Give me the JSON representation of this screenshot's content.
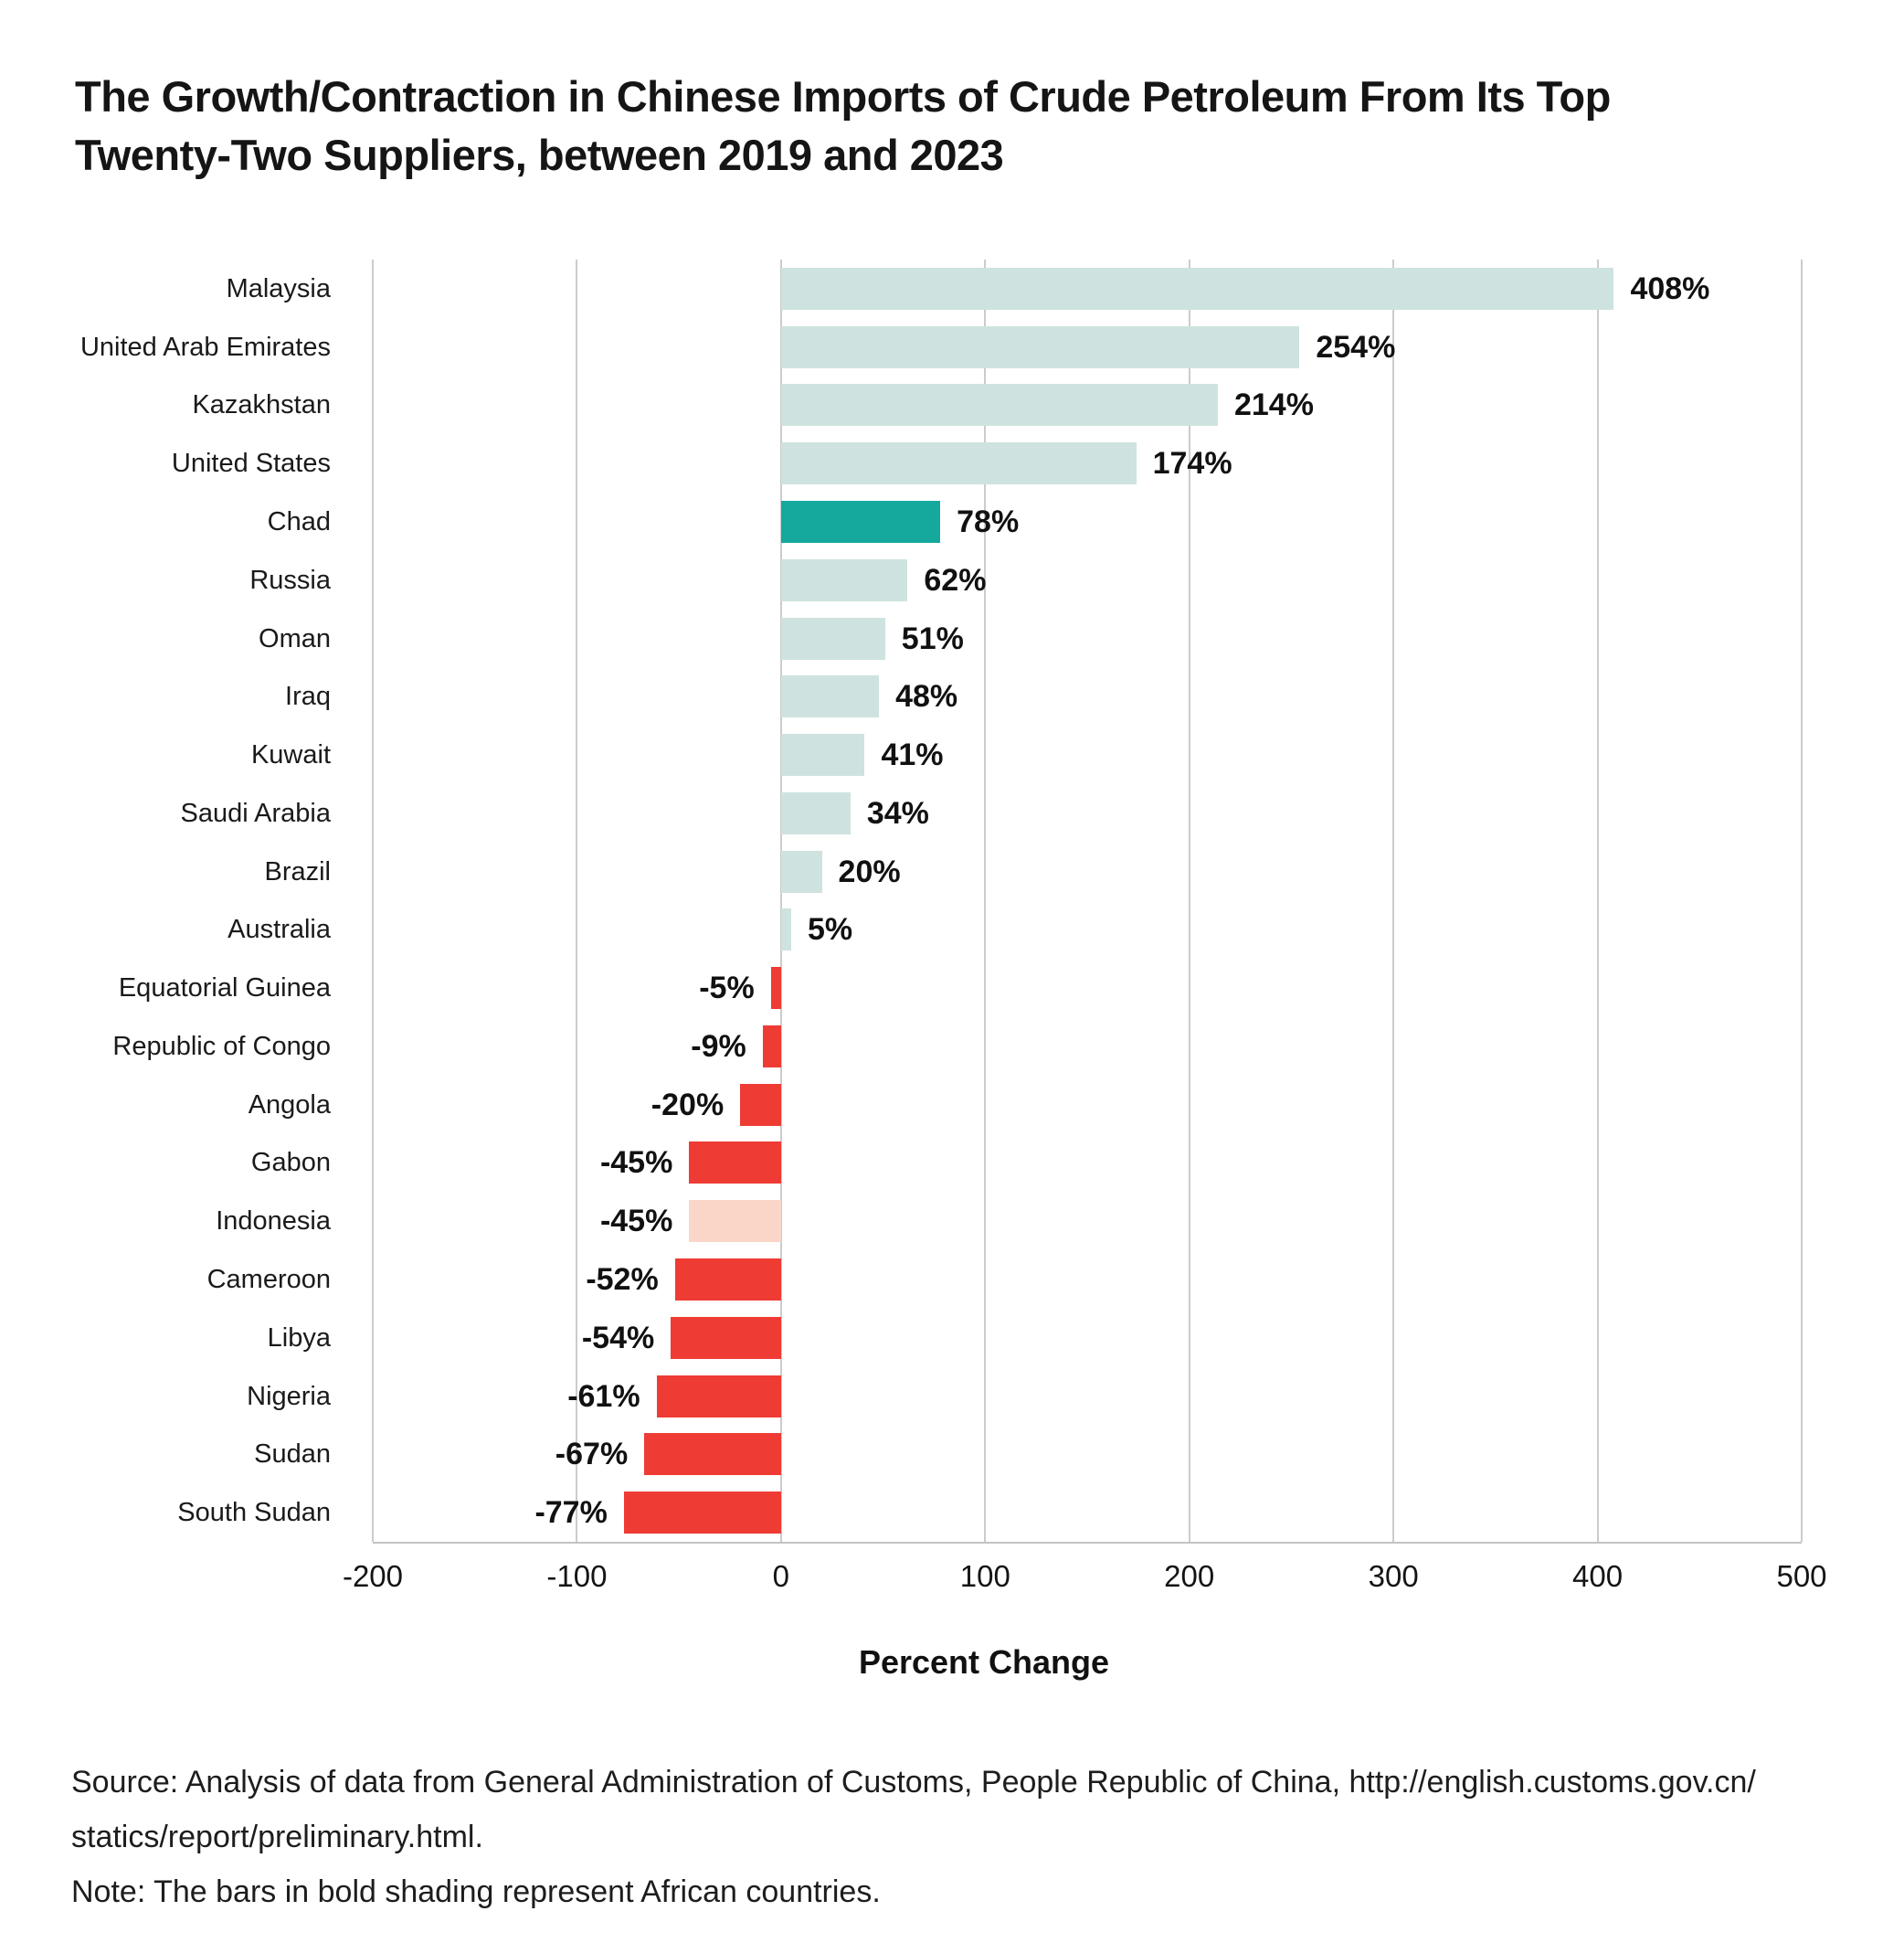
{
  "title": {
    "line1": "The Growth/Contraction in Chinese Imports of Crude Petroleum From Its Top",
    "line2": "Twenty-Two Suppliers, between 2019 and 2023"
  },
  "chart_data": {
    "type": "bar",
    "orientation": "horizontal",
    "title": "The Growth/Contraction in Chinese Imports of Crude Petroleum From Its Top Twenty-Two Suppliers, between 2019 and 2023",
    "xlabel": "Percent Change",
    "xlim": [
      -200,
      500
    ],
    "xticks": [
      -200,
      -100,
      0,
      100,
      200,
      300,
      400,
      500
    ],
    "grid": "vertical",
    "rows": [
      {
        "label": "Malaysia",
        "value": 408,
        "display": "408%",
        "color": "teal_light"
      },
      {
        "label": "United Arab Emirates",
        "value": 254,
        "display": "254%",
        "color": "teal_light"
      },
      {
        "label": "Kazakhstan",
        "value": 214,
        "display": "214%",
        "color": "teal_light"
      },
      {
        "label": "United States",
        "value": 174,
        "display": "174%",
        "color": "teal_light"
      },
      {
        "label": "Chad",
        "value": 78,
        "display": "78%",
        "color": "teal_bold"
      },
      {
        "label": "Russia",
        "value": 62,
        "display": "62%",
        "color": "teal_light"
      },
      {
        "label": "Oman",
        "value": 51,
        "display": "51%",
        "color": "teal_light"
      },
      {
        "label": "Iraq",
        "value": 48,
        "display": "48%",
        "color": "teal_light"
      },
      {
        "label": "Kuwait",
        "value": 41,
        "display": "41%",
        "color": "teal_light"
      },
      {
        "label": "Saudi Arabia",
        "value": 34,
        "display": "34%",
        "color": "teal_light"
      },
      {
        "label": "Brazil",
        "value": 20,
        "display": "20%",
        "color": "teal_light"
      },
      {
        "label": "Australia",
        "value": 5,
        "display": "5%",
        "color": "teal_light"
      },
      {
        "label": "Equatorial Guinea",
        "value": -5,
        "display": "-5%",
        "color": "red_bold"
      },
      {
        "label": "Republic of Congo",
        "value": -9,
        "display": "-9%",
        "color": "red_bold"
      },
      {
        "label": "Angola",
        "value": -20,
        "display": "-20%",
        "color": "red_bold"
      },
      {
        "label": "Gabon",
        "value": -45,
        "display": "-45%",
        "color": "red_bold"
      },
      {
        "label": "Indonesia",
        "value": -45,
        "display": "-45%",
        "color": "red_light"
      },
      {
        "label": "Cameroon",
        "value": -52,
        "display": "-52%",
        "color": "red_bold"
      },
      {
        "label": "Libya",
        "value": -54,
        "display": "-54%",
        "color": "red_bold"
      },
      {
        "label": "Nigeria",
        "value": -61,
        "display": "-61%",
        "color": "red_bold"
      },
      {
        "label": "Sudan",
        "value": -67,
        "display": "-67%",
        "color": "red_bold"
      },
      {
        "label": "South Sudan",
        "value": -77,
        "display": "-77%",
        "color": "red_bold"
      }
    ],
    "colors": {
      "teal_light": "#cee3df",
      "teal_bold": "#15a89c",
      "red_bold": "#ee3b34",
      "red_light": "#fad6c9",
      "gridline": "#cccccc",
      "axis_line": "#c3c3c3"
    },
    "legend": "none"
  },
  "footer": {
    "source_line1": "Source: Analysis of data from General Administration of Customs, People Republic of China, http://english.customs.gov.cn/",
    "source_line2": "statics/report/preliminary.html.",
    "note": "Note: The bars in bold shading represent African countries."
  }
}
